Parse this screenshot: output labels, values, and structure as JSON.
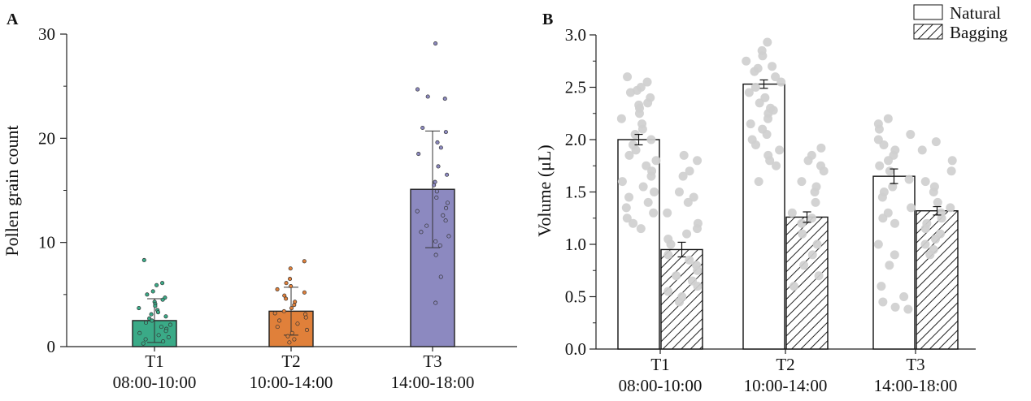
{
  "chart_data": [
    {
      "panel_label": "A",
      "type": "bar",
      "ylabel": "Pollen grain count",
      "ylim": [
        0,
        30
      ],
      "yticks": [
        0,
        10,
        20,
        30
      ],
      "categories": [
        {
          "name": "T1",
          "time": "08:00-10:00"
        },
        {
          "name": "T2",
          "time": "10:00-14:00"
        },
        {
          "name": "T3",
          "time": "14:00-18:00"
        }
      ],
      "values": [
        2.5,
        3.4,
        15.1
      ],
      "errors": [
        2.1,
        2.3,
        5.6
      ],
      "colors": [
        "#3aaa87",
        "#e0803a",
        "#8c89c0"
      ],
      "points": [
        [
          8.3,
          6.1,
          5.9,
          5.3,
          5.0,
          4.7,
          4.5,
          4.3,
          4.1,
          3.9,
          3.7,
          3.5,
          3.3,
          3.1,
          2.9,
          2.7,
          2.5,
          2.3,
          2.1,
          1.9,
          1.7,
          1.5,
          1.3,
          1.1,
          0.9,
          0.7,
          0.5,
          0.3
        ],
        [
          8.2,
          7.5,
          6.1,
          5.8,
          5.5,
          5.2,
          4.9,
          4.6,
          4.3,
          4.0,
          3.7,
          3.4,
          3.1,
          2.8,
          2.5,
          2.2,
          1.9,
          1.6,
          1.3,
          1.0,
          0.7,
          0.4,
          6.5,
          3.2
        ],
        [
          29.1,
          24.7,
          24.0,
          23.8,
          21.0,
          20.6,
          19.6,
          19.1,
          18.5,
          17.3,
          16.5,
          15.8,
          15.5,
          14.9,
          14.3,
          13.8,
          13.3,
          13.0,
          12.6,
          12.1,
          11.6,
          11.0,
          10.6,
          10.1,
          9.7,
          8.8,
          6.7,
          4.2
        ]
      ]
    },
    {
      "panel_label": "B",
      "type": "bar",
      "ylabel": "Volume (μL)",
      "ylim": [
        0,
        3.0
      ],
      "yticks": [
        0.0,
        0.5,
        1.0,
        1.5,
        2.0,
        2.5,
        3.0
      ],
      "categories": [
        {
          "name": "T1",
          "time": "08:00-10:00"
        },
        {
          "name": "T2",
          "time": "10:00-14:00"
        },
        {
          "name": "T3",
          "time": "14:00-18:00"
        }
      ],
      "series": [
        {
          "name": "Natural",
          "pattern": "open",
          "values": [
            2.0,
            2.53,
            1.65
          ],
          "errors": [
            0.05,
            0.04,
            0.07
          ],
          "points": [
            [
              2.6,
              2.55,
              2.5,
              2.47,
              2.45,
              2.4,
              2.35,
              2.33,
              2.3,
              2.25,
              2.2,
              2.15,
              2.1,
              2.05,
              2.0,
              1.95,
              1.9,
              1.85,
              1.8,
              1.75,
              1.7,
              1.65,
              1.6,
              1.55,
              1.5,
              1.45,
              1.4,
              1.35,
              1.3,
              1.25,
              1.2,
              1.15
            ],
            [
              2.93,
              2.85,
              2.8,
              2.75,
              2.7,
              2.68,
              2.65,
              2.6,
              2.55,
              2.5,
              2.45,
              2.4,
              2.35,
              2.3,
              2.28,
              2.25,
              2.2,
              2.15,
              2.1,
              2.05,
              2.0,
              1.95,
              1.9,
              1.85,
              1.8,
              1.75,
              1.6
            ],
            [
              2.2,
              2.15,
              2.1,
              2.05,
              2.0,
              1.95,
              1.9,
              1.85,
              1.8,
              1.75,
              1.7,
              1.62,
              1.55,
              1.5,
              1.45,
              1.35,
              1.3,
              1.25,
              1.2,
              1.0,
              0.9,
              0.8,
              0.6,
              0.5,
              0.45,
              0.4,
              0.38
            ]
          ]
        },
        {
          "name": "Bagging",
          "pattern": "hatched",
          "values": [
            0.95,
            1.26,
            1.32
          ],
          "errors": [
            0.07,
            0.05,
            0.04
          ],
          "points": [
            [
              1.85,
              1.8,
              1.7,
              1.65,
              1.5,
              1.45,
              1.4,
              1.3,
              1.2,
              1.15,
              1.1,
              1.05,
              1.0,
              0.9,
              0.85,
              0.8,
              0.75,
              0.7,
              0.65,
              0.6,
              0.55,
              0.5,
              0.45
            ],
            [
              1.92,
              1.85,
              1.8,
              1.75,
              1.7,
              1.6,
              1.55,
              1.5,
              1.4,
              1.3,
              1.25,
              1.2,
              1.1,
              1.0,
              0.9,
              0.8,
              0.7,
              0.6
            ],
            [
              1.98,
              1.9,
              1.8,
              1.7,
              1.6,
              1.55,
              1.5,
              1.4,
              1.35,
              1.3,
              1.25,
              1.2,
              1.15,
              1.1,
              1.05,
              1.0,
              0.95,
              0.9
            ]
          ]
        }
      ],
      "legend": "top-right"
    }
  ]
}
